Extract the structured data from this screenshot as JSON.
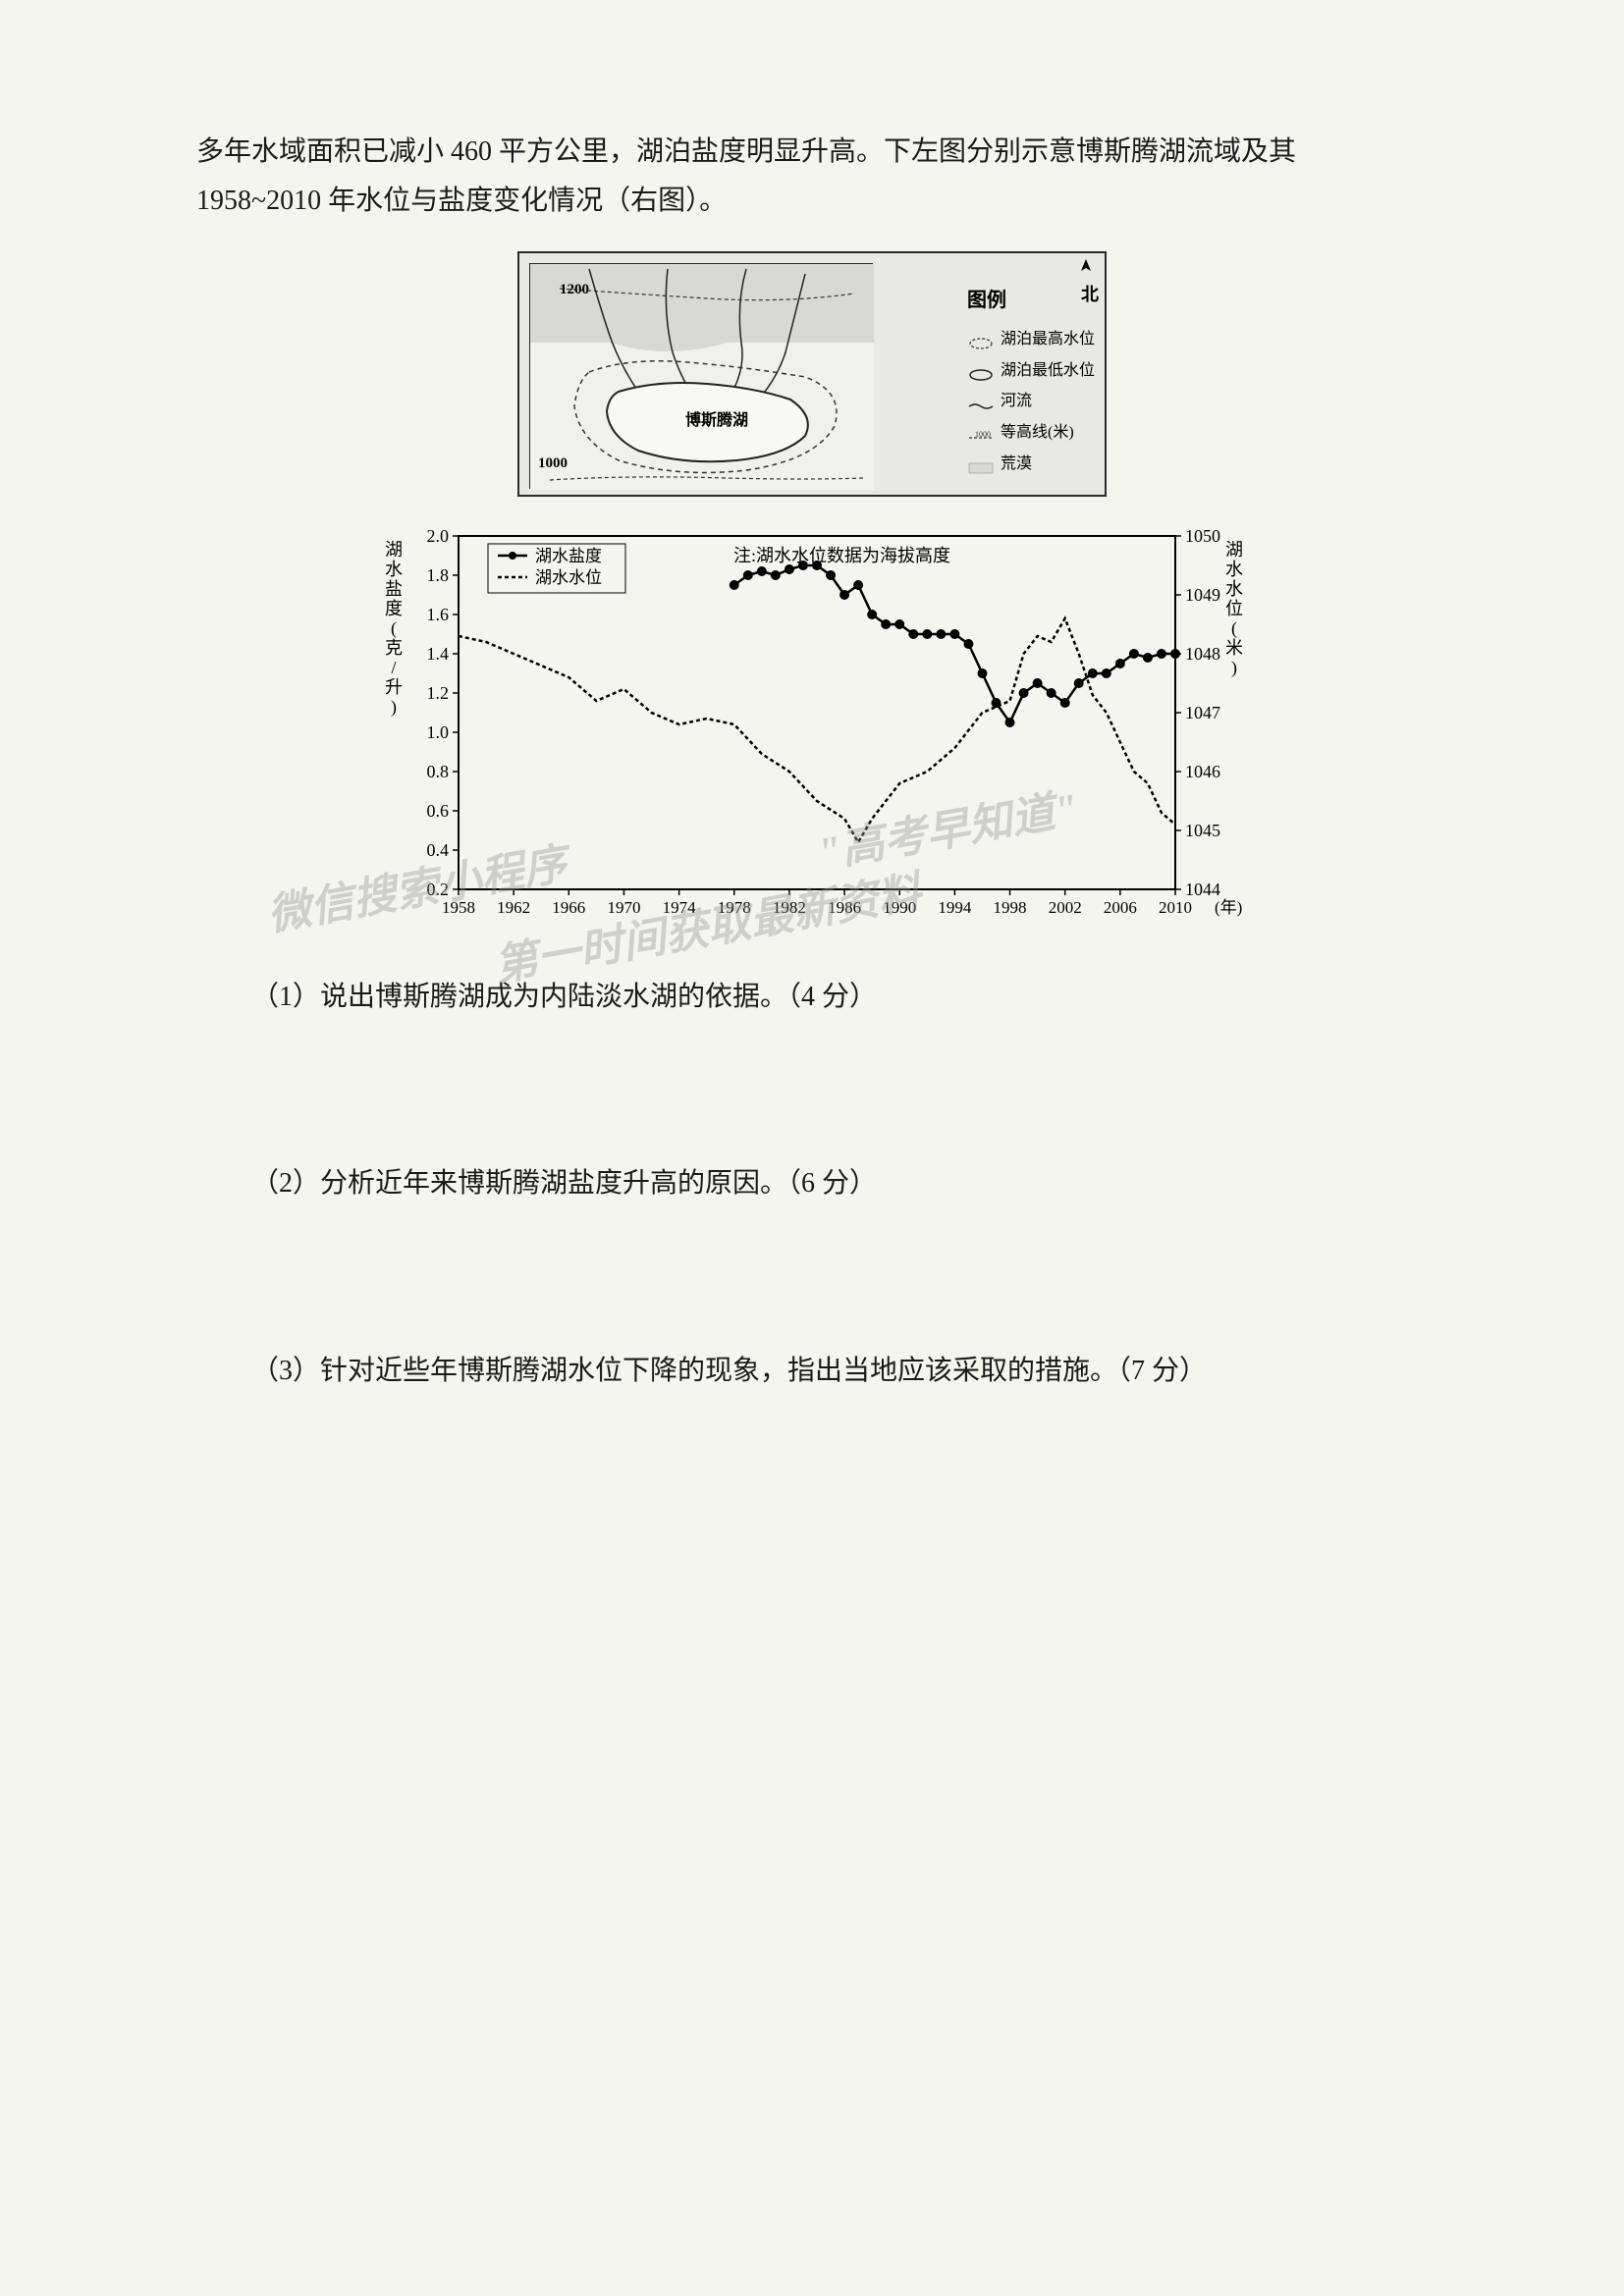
{
  "intro": {
    "text": "多年水域面积已减小 460 平方公里，湖泊盐度明显升高。下左图分别示意博斯腾湖流域及其 1958~2010 年水位与盐度变化情况（右图）。"
  },
  "map": {
    "north_label": "北",
    "elevation_labels": [
      "1200",
      "1000"
    ],
    "lake_name": "博斯腾湖",
    "legend_title": "图例",
    "legend_items": [
      {
        "label": "湖泊最高水位",
        "symbol_type": "dashed-outline"
      },
      {
        "label": "湖泊最低水位",
        "symbol_type": "solid-outline"
      },
      {
        "label": "河流",
        "symbol_type": "river-line"
      },
      {
        "label": "等高线(米)",
        "symbol_type": "contour"
      },
      {
        "label": "荒漠",
        "symbol_type": "desert-fill"
      }
    ]
  },
  "chart": {
    "type": "line",
    "y_left_label": "湖水盐度(克/升)",
    "y_right_label": "湖水水位(米)",
    "x_label": "(年)",
    "note_text": "注:湖水水位数据为海拔高度",
    "legend_series": [
      {
        "label": "湖水盐度",
        "style": "solid-dot"
      },
      {
        "label": "湖水水位",
        "style": "dashed"
      }
    ],
    "y_left": {
      "min": 0.2,
      "max": 2.0,
      "ticks": [
        0.2,
        0.4,
        0.6,
        0.8,
        1.0,
        1.2,
        1.4,
        1.6,
        1.8,
        2.0
      ]
    },
    "y_right": {
      "min": 1044,
      "max": 1050,
      "ticks": [
        1044,
        1045,
        1046,
        1047,
        1048,
        1049,
        1050
      ]
    },
    "x_axis": {
      "min": 1958,
      "max": 2010,
      "ticks": [
        1958,
        1962,
        1966,
        1970,
        1974,
        1978,
        1982,
        1986,
        1990,
        1994,
        1998,
        2002,
        2006,
        2010
      ]
    },
    "salinity_data": [
      {
        "year": 1978,
        "value": 1.75
      },
      {
        "year": 1979,
        "value": 1.8
      },
      {
        "year": 1980,
        "value": 1.82
      },
      {
        "year": 1981,
        "value": 1.8
      },
      {
        "year": 1982,
        "value": 1.83
      },
      {
        "year": 1983,
        "value": 1.85
      },
      {
        "year": 1984,
        "value": 1.85
      },
      {
        "year": 1985,
        "value": 1.8
      },
      {
        "year": 1986,
        "value": 1.7
      },
      {
        "year": 1987,
        "value": 1.75
      },
      {
        "year": 1988,
        "value": 1.6
      },
      {
        "year": 1989,
        "value": 1.55
      },
      {
        "year": 1990,
        "value": 1.55
      },
      {
        "year": 1991,
        "value": 1.5
      },
      {
        "year": 1992,
        "value": 1.5
      },
      {
        "year": 1993,
        "value": 1.5
      },
      {
        "year": 1994,
        "value": 1.5
      },
      {
        "year": 1995,
        "value": 1.45
      },
      {
        "year": 1996,
        "value": 1.3
      },
      {
        "year": 1997,
        "value": 1.15
      },
      {
        "year": 1998,
        "value": 1.05
      },
      {
        "year": 1999,
        "value": 1.2
      },
      {
        "year": 2000,
        "value": 1.25
      },
      {
        "year": 2001,
        "value": 1.2
      },
      {
        "year": 2002,
        "value": 1.15
      },
      {
        "year": 2003,
        "value": 1.25
      },
      {
        "year": 2004,
        "value": 1.3
      },
      {
        "year": 2005,
        "value": 1.3
      },
      {
        "year": 2006,
        "value": 1.35
      },
      {
        "year": 2007,
        "value": 1.4
      },
      {
        "year": 2008,
        "value": 1.38
      },
      {
        "year": 2009,
        "value": 1.4
      },
      {
        "year": 2010,
        "value": 1.4
      }
    ],
    "water_level_data": [
      {
        "year": 1958,
        "value": 1048.3
      },
      {
        "year": 1960,
        "value": 1048.2
      },
      {
        "year": 1962,
        "value": 1048.0
      },
      {
        "year": 1964,
        "value": 1047.8
      },
      {
        "year": 1966,
        "value": 1047.6
      },
      {
        "year": 1968,
        "value": 1047.2
      },
      {
        "year": 1970,
        "value": 1047.4
      },
      {
        "year": 1972,
        "value": 1047.0
      },
      {
        "year": 1974,
        "value": 1046.8
      },
      {
        "year": 1976,
        "value": 1046.9
      },
      {
        "year": 1978,
        "value": 1046.8
      },
      {
        "year": 1980,
        "value": 1046.3
      },
      {
        "year": 1982,
        "value": 1046.0
      },
      {
        "year": 1984,
        "value": 1045.5
      },
      {
        "year": 1986,
        "value": 1045.2
      },
      {
        "year": 1987,
        "value": 1044.8
      },
      {
        "year": 1988,
        "value": 1045.2
      },
      {
        "year": 1990,
        "value": 1045.8
      },
      {
        "year": 1992,
        "value": 1046.0
      },
      {
        "year": 1994,
        "value": 1046.4
      },
      {
        "year": 1996,
        "value": 1047.0
      },
      {
        "year": 1998,
        "value": 1047.2
      },
      {
        "year": 1999,
        "value": 1048.0
      },
      {
        "year": 2000,
        "value": 1048.3
      },
      {
        "year": 2001,
        "value": 1048.2
      },
      {
        "year": 2002,
        "value": 1048.6
      },
      {
        "year": 2003,
        "value": 1048.0
      },
      {
        "year": 2004,
        "value": 1047.3
      },
      {
        "year": 2005,
        "value": 1047.0
      },
      {
        "year": 2006,
        "value": 1046.5
      },
      {
        "year": 2007,
        "value": 1046.0
      },
      {
        "year": 2008,
        "value": 1045.8
      },
      {
        "year": 2009,
        "value": 1045.3
      },
      {
        "year": 2010,
        "value": 1045.1
      }
    ],
    "colors": {
      "axis": "#000000",
      "salinity_line": "#000000",
      "water_level_line": "#000000",
      "background": "#f5f5f0"
    },
    "line_width": 2.5,
    "marker_size": 5
  },
  "questions": {
    "q1": "（1）说出博斯腾湖成为内陆淡水湖的依据。（4 分）",
    "q2": "（2）分析近年来博斯腾湖盐度升高的原因。（6 分）",
    "q3": "（3）针对近些年博斯腾湖水位下降的现象，指出当地应该采取的措施。（7 分）"
  },
  "watermarks": {
    "w1": "微信搜索小程序",
    "w2": "\"高考早知道\"",
    "w3": "第一时间获取最新资料"
  }
}
